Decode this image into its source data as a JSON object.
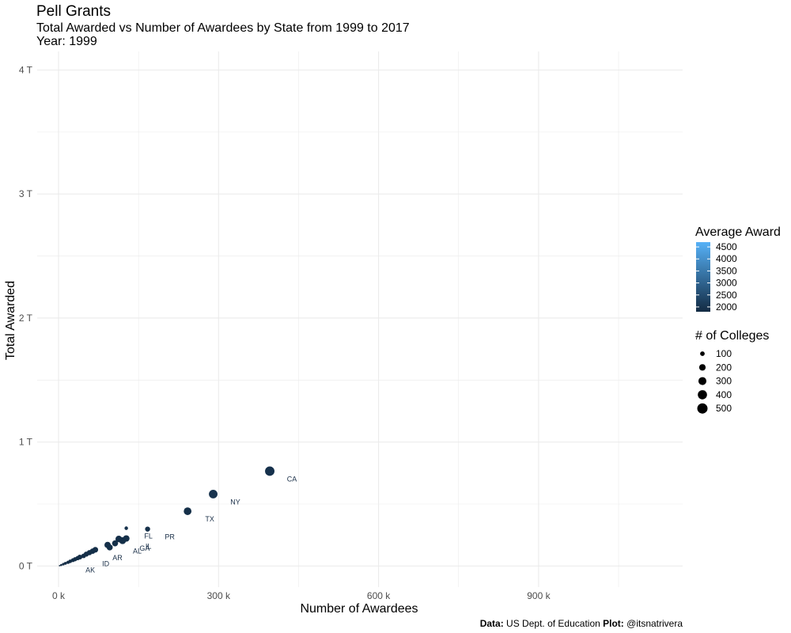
{
  "header": {
    "title": "Pell Grants",
    "subtitle": "Total Awarded vs Number of Awardees by State from 1999 to 2017",
    "year_label": "Year: 1999"
  },
  "caption": {
    "data_label": "Data:",
    "data_source": " US Dept. of Education ",
    "plot_label": "Plot:",
    "plot_author": " @itsnatrivera"
  },
  "colors": {
    "low": "#132B43",
    "high": "#56B1F7",
    "grid": "#ebebeb",
    "label": "#1b3049"
  },
  "chart_data": {
    "type": "scatter",
    "xlabel": "Number of Awardees",
    "ylabel": "Total Awarded",
    "xlim": [
      -40000,
      1170000
    ],
    "ylim": [
      -170000000000,
      4150000000000
    ],
    "x_ticks": [
      0,
      300000,
      600000,
      900000
    ],
    "x_tick_labels": [
      "0 k",
      "300 k",
      "600 k",
      "900 k"
    ],
    "y_ticks": [
      0,
      1000000000000,
      2000000000000,
      3000000000000,
      4000000000000
    ],
    "y_tick_labels": [
      "0 T",
      "1 T",
      "2 T",
      "3 T",
      "4 T"
    ],
    "grid": true,
    "legend_color": {
      "title": "Average Award",
      "range": [
        1800,
        4700
      ],
      "ticks": [
        2000,
        2500,
        3000,
        3500,
        4000,
        4500
      ],
      "tick_labels": [
        "2000",
        "2500",
        "3000",
        "3500",
        "4000",
        "4500"
      ],
      "placement": "right"
    },
    "legend_size": {
      "title": "# of Colleges",
      "values": [
        100,
        200,
        300,
        400,
        500
      ],
      "labels": [
        "100",
        "200",
        "300",
        "400",
        "500"
      ],
      "placement": "right"
    },
    "points": [
      {
        "label": "CA",
        "x": 396000,
        "y": 765000000000,
        "colleges": 420,
        "avg": 1940
      },
      {
        "label": "NY",
        "x": 290000,
        "y": 580000000000,
        "colleges": 350,
        "avg": 1960
      },
      {
        "label": "TX",
        "x": 242000,
        "y": 442000000000,
        "colleges": 280,
        "avg": 1900
      },
      {
        "label": "PR",
        "x": 167000,
        "y": 298000000000,
        "colleges": 120,
        "avg": 1920
      },
      {
        "label": "FL",
        "x": 127000,
        "y": 305000000000,
        "colleges": 60,
        "avg": 1960
      },
      {
        "label": "IL",
        "x": 127000,
        "y": 222000000000,
        "colleges": 200,
        "avg": 1900
      },
      {
        "label": "GA",
        "x": 120000,
        "y": 205000000000,
        "colleges": 230,
        "avg": 1900
      },
      {
        "label": "",
        "x": 113000,
        "y": 218000000000,
        "colleges": 210,
        "avg": 1890
      },
      {
        "label": "AL",
        "x": 106000,
        "y": 183000000000,
        "colleges": 170,
        "avg": 1900
      },
      {
        "label": "",
        "x": 92000,
        "y": 170000000000,
        "colleges": 190,
        "avg": 1910
      },
      {
        "label": "",
        "x": 96000,
        "y": 150000000000,
        "colleges": 170,
        "avg": 1900
      },
      {
        "label": "AR",
        "x": 69000,
        "y": 131000000000,
        "colleges": 150,
        "avg": 1890
      },
      {
        "label": "",
        "x": 64000,
        "y": 120000000000,
        "colleges": 140,
        "avg": 1890
      },
      {
        "label": "",
        "x": 58000,
        "y": 108000000000,
        "colleges": 130,
        "avg": 1880
      },
      {
        "label": "",
        "x": 52000,
        "y": 96000000000,
        "colleges": 120,
        "avg": 1880
      },
      {
        "label": "ID",
        "x": 47000,
        "y": 82000000000,
        "colleges": 100,
        "avg": 1870
      },
      {
        "label": "",
        "x": 40000,
        "y": 72000000000,
        "colleges": 110,
        "avg": 1870
      },
      {
        "label": "",
        "x": 36000,
        "y": 64000000000,
        "colleges": 90,
        "avg": 1860
      },
      {
        "label": "",
        "x": 31000,
        "y": 55000000000,
        "colleges": 80,
        "avg": 1860
      },
      {
        "label": "",
        "x": 27000,
        "y": 47000000000,
        "colleges": 70,
        "avg": 1860
      },
      {
        "label": "",
        "x": 22000,
        "y": 38000000000,
        "colleges": 60,
        "avg": 1850
      },
      {
        "label": "AK",
        "x": 18000,
        "y": 30000000000,
        "colleges": 50,
        "avg": 1850
      },
      {
        "label": "",
        "x": 13000,
        "y": 22000000000,
        "colleges": 40,
        "avg": 1850
      },
      {
        "label": "",
        "x": 9000,
        "y": 15000000000,
        "colleges": 30,
        "avg": 1850
      },
      {
        "label": "",
        "x": 5000,
        "y": 8000000000,
        "colleges": 20,
        "avg": 1840
      },
      {
        "label": "",
        "x": 2000,
        "y": 3000000000,
        "colleges": 10,
        "avg": 1840
      }
    ]
  }
}
